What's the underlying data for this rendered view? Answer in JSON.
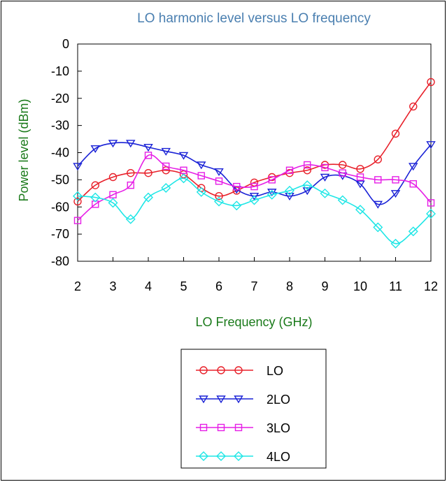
{
  "chart_data": {
    "type": "line",
    "title": "LO harmonic level versus LO frequency",
    "xlabel": "LO Frequency (GHz)",
    "ylabel": "Power level (dBm)",
    "xlim": [
      2,
      12
    ],
    "ylim": [
      -80,
      0
    ],
    "grid": false,
    "legend_position": "bottom-center",
    "x": [
      2,
      2.5,
      3,
      3.5,
      4,
      4.5,
      5,
      5.5,
      6,
      6.5,
      7,
      7.5,
      8,
      8.5,
      9,
      9.5,
      10,
      10.5,
      11,
      11.5,
      12
    ],
    "x_ticks": [
      "2",
      "3",
      "4",
      "5",
      "6",
      "7",
      "8",
      "9",
      "10",
      "11",
      "12"
    ],
    "y_ticks": [
      "0",
      "-10",
      "-20",
      "-30",
      "-40",
      "-50",
      "-60",
      "-70",
      "-80"
    ],
    "series": [
      {
        "name": "LO",
        "color": "#e8202a",
        "marker": "circle",
        "values": [
          -58,
          -52,
          -49,
          -47.5,
          -47.5,
          -46.5,
          -48,
          -53,
          -56,
          -54,
          -51,
          -49,
          -47.5,
          -46.5,
          -44.5,
          -44.5,
          -46,
          -42.5,
          -33,
          -23,
          -14
        ]
      },
      {
        "name": "2LO",
        "color": "#1a22d6",
        "marker": "triangle-down",
        "values": [
          -45,
          -38.5,
          -36.5,
          -36.5,
          -38,
          -39.5,
          -41,
          -44.5,
          -47,
          -53.5,
          -56,
          -54.5,
          -56,
          -54,
          -49,
          -48.5,
          -51.5,
          -59,
          -55,
          -45,
          -37
        ]
      },
      {
        "name": "3LO",
        "color": "#e61ee6",
        "marker": "square",
        "values": [
          -65,
          -59,
          -55.5,
          -52,
          -41,
          -45,
          -46.5,
          -48.5,
          -50.5,
          -52.5,
          -52.5,
          -50,
          -46.5,
          -44.5,
          -45.5,
          -47.5,
          -49,
          -50,
          -50,
          -51.5,
          -58.5
        ]
      },
      {
        "name": "4LO",
        "color": "#1ee6e6",
        "marker": "diamond",
        "values": [
          -56,
          -56.5,
          -58.5,
          -64.5,
          -56.5,
          -53,
          -49.5,
          -54.5,
          -58,
          -59.5,
          -57.5,
          -55.5,
          -54,
          -52,
          -55,
          -57.5,
          -61,
          -67.5,
          -73.5,
          -69,
          -62.5
        ]
      }
    ]
  }
}
